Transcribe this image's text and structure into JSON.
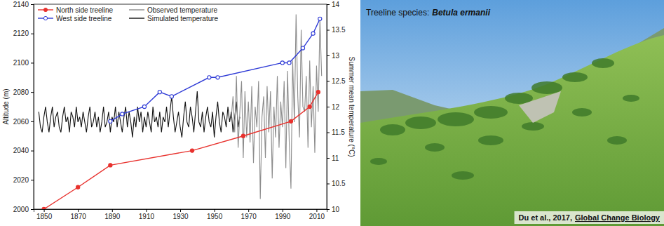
{
  "chart_data": {
    "type": "line",
    "y_label": "Altitude (m)",
    "y2_label": "Summer mean temperature (°C)",
    "xlim": [
      1844,
      2016
    ],
    "xticks": [
      1850,
      1870,
      1890,
      1910,
      1930,
      1950,
      1970,
      1990,
      2010
    ],
    "ylim": [
      2000,
      2140
    ],
    "yticks": [
      2000,
      2020,
      2040,
      2060,
      2080,
      2100,
      2120,
      2140
    ],
    "y2lim": [
      10,
      14
    ],
    "y2ticks": [
      10,
      10.5,
      11,
      11.5,
      12,
      12.5,
      13,
      13.5,
      14
    ],
    "grid": false,
    "legend": "upper left",
    "series": [
      {
        "name": "North side treeline",
        "color": "#e8322e",
        "marker": "circle",
        "line_style": "solid",
        "x": [
          1850,
          1870,
          1889,
          1937,
          1967,
          1995,
          2006,
          2011
        ],
        "values": [
          2000,
          2015,
          2030,
          2040,
          2050,
          2060,
          2070,
          2080
        ]
      },
      {
        "name": "West side treeline",
        "color": "#2f3bd6",
        "marker": "open-circle",
        "line_style": "solid",
        "x": [
          1889,
          1896,
          1909,
          1918,
          1925,
          1947,
          1952,
          1990,
          1994,
          2002,
          2008,
          2012
        ],
        "values": [
          2060,
          2065,
          2070,
          2080,
          2077,
          2090,
          2090,
          2100,
          2100,
          2110,
          2120,
          2130
        ]
      },
      {
        "name": "Observed temperature",
        "color": "#8c8c8c",
        "axis": "y2",
        "line_style": "solid",
        "x": [
          1960,
          1961,
          1962,
          1963,
          1964,
          1965,
          1966,
          1967,
          1968,
          1969,
          1970,
          1971,
          1972,
          1973,
          1974,
          1975,
          1976,
          1977,
          1978,
          1979,
          1980,
          1981,
          1982,
          1983,
          1984,
          1985,
          1986,
          1987,
          1988,
          1989,
          1990,
          1991,
          1992,
          1993,
          1994,
          1995,
          1996,
          1997,
          1998,
          1999,
          2000,
          2001,
          2002,
          2003,
          2004,
          2005,
          2006,
          2007,
          2008,
          2009,
          2010,
          2011,
          2012,
          2013
        ],
        "values": [
          11.8,
          12.2,
          11.5,
          12.6,
          11.2,
          11.9,
          12.5,
          11.0,
          12.3,
          11.4,
          12.1,
          11.3,
          12.4,
          10.9,
          12.0,
          11.6,
          12.5,
          10.2,
          11.8,
          12.2,
          11.0,
          12.4,
          11.5,
          12.3,
          10.6,
          12.0,
          11.4,
          12.6,
          11.2,
          12.1,
          11.6,
          12.5,
          10.8,
          12.7,
          11.3,
          10.4,
          12.9,
          11.7,
          13.8,
          12.2,
          11.4,
          13.5,
          12.0,
          11.9,
          12.6,
          11.2,
          12.9,
          11.6,
          12.4,
          11.1,
          12.8,
          11.9,
          13.7,
          12.6
        ]
      },
      {
        "name": "Simulated temperature",
        "color": "#111111",
        "axis": "y2",
        "line_style": "solid",
        "x": [
          1847,
          1848,
          1849,
          1850,
          1851,
          1852,
          1853,
          1854,
          1855,
          1856,
          1857,
          1858,
          1859,
          1860,
          1861,
          1862,
          1863,
          1864,
          1865,
          1866,
          1867,
          1868,
          1869,
          1870,
          1871,
          1872,
          1873,
          1874,
          1875,
          1876,
          1877,
          1878,
          1879,
          1880,
          1881,
          1882,
          1883,
          1884,
          1885,
          1886,
          1887,
          1888,
          1889,
          1890,
          1891,
          1892,
          1893,
          1894,
          1895,
          1896,
          1897,
          1898,
          1899,
          1900,
          1901,
          1902,
          1903,
          1904,
          1905,
          1906,
          1907,
          1908,
          1909,
          1910,
          1911,
          1912,
          1913,
          1914,
          1915,
          1916,
          1917,
          1918,
          1919,
          1920,
          1921,
          1922,
          1923,
          1924,
          1925,
          1926,
          1927,
          1928,
          1929,
          1930,
          1931,
          1932,
          1933,
          1934,
          1935,
          1936,
          1937,
          1938,
          1939,
          1940,
          1941,
          1942,
          1943,
          1944,
          1945,
          1946,
          1947,
          1948,
          1949,
          1950,
          1951,
          1952,
          1953,
          1954,
          1955,
          1956,
          1957,
          1958,
          1959,
          1960,
          1961,
          1962,
          1963,
          1964,
          1965
        ],
        "values": [
          11.9,
          11.6,
          11.5,
          11.8,
          12.0,
          11.7,
          11.5,
          11.8,
          12.0,
          11.6,
          11.8,
          11.9,
          11.6,
          11.5,
          11.8,
          12.0,
          11.7,
          11.8,
          11.5,
          11.9,
          11.8,
          11.6,
          12.0,
          11.7,
          11.8,
          11.6,
          11.9,
          11.7,
          11.5,
          11.8,
          12.0,
          11.6,
          11.7,
          11.9,
          11.6,
          11.8,
          11.5,
          11.7,
          12.0,
          11.6,
          11.7,
          11.9,
          11.5,
          11.8,
          11.7,
          12.0,
          11.6,
          11.9,
          11.7,
          11.5,
          11.8,
          12.0,
          11.6,
          11.9,
          11.7,
          11.4,
          11.8,
          11.6,
          12.0,
          11.7,
          11.9,
          11.5,
          11.8,
          11.6,
          11.9,
          11.7,
          11.5,
          12.0,
          11.7,
          11.8,
          11.6,
          11.9,
          11.5,
          11.8,
          11.7,
          12.0,
          11.6,
          11.9,
          12.2,
          11.8,
          11.5,
          11.7,
          11.9,
          11.6,
          11.4,
          11.8,
          12.1,
          11.7,
          11.6,
          12.0,
          11.8,
          11.5,
          11.9,
          12.3,
          11.7,
          11.6,
          11.9,
          11.5,
          11.8,
          12.0,
          11.7,
          11.6,
          11.9,
          11.4,
          11.8,
          12.1,
          11.7,
          11.5,
          11.9,
          11.8,
          11.6,
          12.0,
          11.7,
          11.9,
          11.5,
          11.8,
          12.1,
          11.6,
          11.8
        ]
      }
    ]
  },
  "photo": {
    "caption_label": "Treeline species:",
    "caption_species": "Betula ermanii",
    "credit": "Du et al., 2017,",
    "credit_journal": "Global Change Biology"
  }
}
